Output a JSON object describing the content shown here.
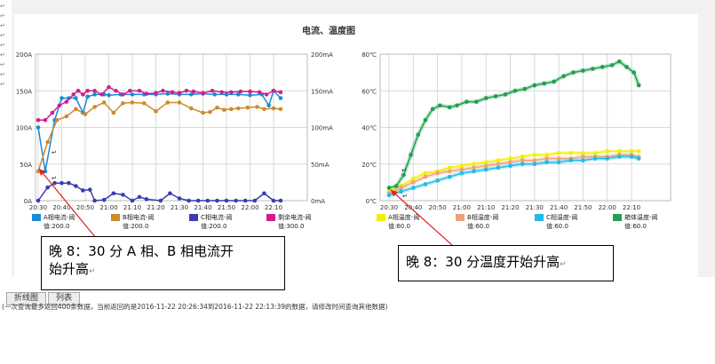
{
  "page_title": "电流、温度图",
  "colors": {
    "a": "#1a8bd1",
    "b": "#d08a2c",
    "c": "#3b3bb3",
    "d": "#cf1f8f",
    "ta": "#f0f000",
    "tb": "#f0a07a",
    "tc": "#22bbe6",
    "td": "#1fa050",
    "grid": "#d9d9d9",
    "annotation": "#e02020"
  },
  "chart_data": [
    {
      "type": "line",
      "title": "",
      "x": [
        "20:30",
        "20:40",
        "20:50",
        "21:00",
        "21:10",
        "21:20",
        "21:30",
        "21:40",
        "21:50",
        "22:00",
        "22:10"
      ],
      "ylim": [
        0,
        200
      ],
      "y_ticks": [
        "0A",
        "50A",
        "100A",
        "150A",
        "200A"
      ],
      "y2lim": [
        0,
        200
      ],
      "y2_ticks": [
        "0mA",
        "50mA",
        "100mA",
        "150mA",
        "200mA"
      ],
      "legend": [
        {
          "name": "A相电流-阈值:200.0",
          "line1": "A相电流-阈",
          "line2": "值:200.0",
          "color": "#1a8bd1"
        },
        {
          "name": "B相电流-阈值:200.0",
          "line1": "B相电流-阈",
          "line2": "值:200.0",
          "color": "#d08a2c"
        },
        {
          "name": "C相电流-阈值:200.0",
          "line1": "C相电流-阈",
          "line2": "值:200.0",
          "color": "#3b3bb3"
        },
        {
          "name": "剩余电流-阈值:300.0",
          "line1": "剩余电流-阈",
          "line2": "值:300.0",
          "color": "#cf1f8f"
        }
      ],
      "series": [
        {
          "name": "A相电流",
          "color": "#1a8bd1",
          "points": [
            [
              0,
              100
            ],
            [
              0.3,
              40
            ],
            [
              0.7,
              110
            ],
            [
              1,
              140
            ],
            [
              1.3,
              140
            ],
            [
              1.6,
              140
            ],
            [
              1.9,
              120
            ],
            [
              2.1,
              142
            ],
            [
              2.4,
              145
            ],
            [
              2.8,
              145
            ],
            [
              3,
              144
            ],
            [
              3.5,
              145
            ],
            [
              4,
              145
            ],
            [
              4.5,
              145
            ],
            [
              5,
              145
            ],
            [
              5.5,
              146
            ],
            [
              6,
              145
            ],
            [
              6.5,
              145
            ],
            [
              7,
              146
            ],
            [
              7.5,
              145
            ],
            [
              8,
              145
            ],
            [
              8.5,
              145
            ],
            [
              9,
              144
            ],
            [
              9.5,
              145
            ],
            [
              9.8,
              130
            ],
            [
              10,
              150
            ],
            [
              10.3,
              140
            ]
          ]
        },
        {
          "name": "B相电流",
          "color": "#d08a2c",
          "points": [
            [
              0,
              40
            ],
            [
              0.4,
              80
            ],
            [
              0.8,
              110
            ],
            [
              1.2,
              115
            ],
            [
              1.6,
              125
            ],
            [
              2,
              118
            ],
            [
              2.4,
              128
            ],
            [
              2.8,
              134
            ],
            [
              3.2,
              120
            ],
            [
              3.6,
              133
            ],
            [
              4,
              134
            ],
            [
              4.5,
              133
            ],
            [
              5,
              122
            ],
            [
              5.5,
              134
            ],
            [
              6,
              134
            ],
            [
              6.5,
              126
            ],
            [
              7,
              120
            ],
            [
              7.3,
              121
            ],
            [
              7.6,
              127
            ],
            [
              7.9,
              124
            ],
            [
              8.2,
              125
            ],
            [
              8.5,
              126
            ],
            [
              8.9,
              127
            ],
            [
              9.3,
              128
            ],
            [
              9.6,
              125
            ],
            [
              10,
              126
            ],
            [
              10.3,
              125
            ]
          ]
        },
        {
          "name": "C相电流",
          "color": "#3b3bb3",
          "points": [
            [
              0,
              0
            ],
            [
              0.4,
              18
            ],
            [
              0.7,
              24
            ],
            [
              1,
              24
            ],
            [
              1.3,
              24
            ],
            [
              1.6,
              20
            ],
            [
              1.9,
              14
            ],
            [
              2.2,
              15
            ],
            [
              2.4,
              0
            ],
            [
              2.8,
              1
            ],
            [
              3.2,
              10
            ],
            [
              3.6,
              8
            ],
            [
              4,
              0
            ],
            [
              4.3,
              5
            ],
            [
              4.6,
              2
            ],
            [
              5.2,
              0
            ],
            [
              5.6,
              10
            ],
            [
              6,
              3
            ],
            [
              6.4,
              0
            ],
            [
              6.8,
              0
            ],
            [
              7.2,
              0
            ],
            [
              7.6,
              0
            ],
            [
              8,
              0
            ],
            [
              8.4,
              0
            ],
            [
              8.8,
              0
            ],
            [
              9.2,
              0
            ],
            [
              9.6,
              10
            ],
            [
              10,
              0
            ],
            [
              10.3,
              0
            ]
          ]
        },
        {
          "name": "剩余电流",
          "color": "#cf1f8f",
          "points": [
            [
              0,
              110
            ],
            [
              0.3,
              110
            ],
            [
              0.6,
              120
            ],
            [
              0.9,
              130
            ],
            [
              1.2,
              135
            ],
            [
              1.5,
              145
            ],
            [
              1.7,
              150
            ],
            [
              1.9,
              145
            ],
            [
              2.1,
              150
            ],
            [
              2.4,
              150
            ],
            [
              2.7,
              145
            ],
            [
              3,
              155
            ],
            [
              3.3,
              150
            ],
            [
              3.6,
              145
            ],
            [
              3.9,
              150
            ],
            [
              4.3,
              150
            ],
            [
              4.6,
              146
            ],
            [
              5,
              147
            ],
            [
              5.3,
              150
            ],
            [
              5.7,
              148
            ],
            [
              6,
              147
            ],
            [
              6.3,
              150
            ],
            [
              6.6,
              149
            ],
            [
              7,
              147
            ],
            [
              7.4,
              150
            ],
            [
              7.8,
              148
            ],
            [
              8.2,
              148
            ],
            [
              8.6,
              149
            ],
            [
              9,
              149
            ],
            [
              9.4,
              148
            ],
            [
              9.7,
              145
            ],
            [
              10,
              150
            ],
            [
              10.3,
              148
            ]
          ]
        }
      ]
    },
    {
      "type": "line",
      "title": "",
      "x": [
        "20:30",
        "20:40",
        "20:50",
        "21:00",
        "21:10",
        "21:20",
        "21:30",
        "21:40",
        "21:50",
        "22:00",
        "22:10"
      ],
      "ylim": [
        0,
        80
      ],
      "y_ticks": [
        "0℃",
        "20℃",
        "40℃",
        "60℃",
        "80℃"
      ],
      "legend": [
        {
          "name": "A相温度-阈值:60.0",
          "line1": "A相温度-阈",
          "line2": "值:60.0",
          "color": "#f0f000"
        },
        {
          "name": "B相温度-阈值:60.0",
          "line1": "B相温度-阈",
          "line2": "值:60.0",
          "color": "#f0a07a"
        },
        {
          "name": "C相温度-阈值:60.0",
          "line1": "C相温度-阈",
          "line2": "值:60.0",
          "color": "#22bbe6"
        },
        {
          "name": "箱体温度-阈值:60.0",
          "line1": "箱体温度-阈",
          "line2": "值:60.0",
          "color": "#1fa050"
        }
      ],
      "series": [
        {
          "name": "A相温度",
          "color": "#f0f000",
          "points": [
            [
              0,
              5
            ],
            [
              0.5,
              8
            ],
            [
              1,
              12
            ],
            [
              1.5,
              15
            ],
            [
              2,
              16
            ],
            [
              2.5,
              18
            ],
            [
              3,
              19
            ],
            [
              3.5,
              20
            ],
            [
              4,
              21
            ],
            [
              4.5,
              22
            ],
            [
              5,
              23
            ],
            [
              5.5,
              24
            ],
            [
              6,
              25
            ],
            [
              6.5,
              25
            ],
            [
              7,
              26
            ],
            [
              7.5,
              26
            ],
            [
              8,
              26
            ],
            [
              8.5,
              26
            ],
            [
              9,
              27
            ],
            [
              9.5,
              27
            ],
            [
              10,
              27
            ],
            [
              10.3,
              27
            ]
          ]
        },
        {
          "name": "B相温度",
          "color": "#f0a07a",
          "points": [
            [
              0,
              4
            ],
            [
              0.5,
              7
            ],
            [
              1,
              10
            ],
            [
              1.5,
              13
            ],
            [
              2,
              15
            ],
            [
              2.5,
              16
            ],
            [
              3,
              17
            ],
            [
              3.5,
              18
            ],
            [
              4,
              19
            ],
            [
              4.5,
              20
            ],
            [
              5,
              21
            ],
            [
              5.5,
              22
            ],
            [
              6,
              22
            ],
            [
              6.5,
              23
            ],
            [
              7,
              23
            ],
            [
              7.5,
              23
            ],
            [
              8,
              24
            ],
            [
              8.5,
              24
            ],
            [
              9,
              24
            ],
            [
              9.5,
              25
            ],
            [
              10,
              25
            ],
            [
              10.3,
              24
            ]
          ]
        },
        {
          "name": "C相温度",
          "color": "#22bbe6",
          "points": [
            [
              0,
              3
            ],
            [
              0.5,
              5
            ],
            [
              1,
              7
            ],
            [
              1.5,
              9
            ],
            [
              2,
              11
            ],
            [
              2.5,
              13
            ],
            [
              3,
              15
            ],
            [
              3.5,
              16
            ],
            [
              4,
              17
            ],
            [
              4.5,
              18
            ],
            [
              5,
              19
            ],
            [
              5.5,
              20
            ],
            [
              6,
              20
            ],
            [
              6.5,
              21
            ],
            [
              7,
              21
            ],
            [
              7.5,
              22
            ],
            [
              8,
              22
            ],
            [
              8.5,
              23
            ],
            [
              9,
              23
            ],
            [
              9.5,
              24
            ],
            [
              10,
              24
            ],
            [
              10.3,
              23
            ]
          ]
        },
        {
          "name": "箱体温度",
          "color": "#1fa050",
          "points": [
            [
              0,
              7
            ],
            [
              0.3,
              8
            ],
            [
              0.6,
              14
            ],
            [
              0.9,
              25
            ],
            [
              1.2,
              36
            ],
            [
              1.5,
              44
            ],
            [
              1.8,
              50
            ],
            [
              2.1,
              52
            ],
            [
              2.5,
              51
            ],
            [
              2.8,
              52
            ],
            [
              3.2,
              54
            ],
            [
              3.6,
              54
            ],
            [
              4,
              56
            ],
            [
              4.4,
              57
            ],
            [
              4.8,
              58
            ],
            [
              5.2,
              60
            ],
            [
              5.6,
              61
            ],
            [
              6,
              63
            ],
            [
              6.4,
              64
            ],
            [
              6.8,
              65
            ],
            [
              7.2,
              68
            ],
            [
              7.6,
              70
            ],
            [
              8,
              71
            ],
            [
              8.4,
              72
            ],
            [
              8.8,
              73
            ],
            [
              9.2,
              74
            ],
            [
              9.5,
              76
            ],
            [
              9.8,
              73
            ],
            [
              10.1,
              70
            ],
            [
              10.3,
              63
            ]
          ]
        }
      ]
    }
  ],
  "callouts": {
    "left_line1": "晚 8：30 分 A 相、B 相电流开",
    "left_line2": "始升高",
    "right": "晚 8：30 分温度开始升高"
  },
  "return_mark": "↵",
  "tabs": {
    "line_chart": "折线图",
    "list": "列表"
  },
  "note": "(一次查询最多返回400条数据，当前返回的是2016-11-22 20:26:34到2016-11-22 22:13:39的数据，请修改时间查询其他数据)"
}
